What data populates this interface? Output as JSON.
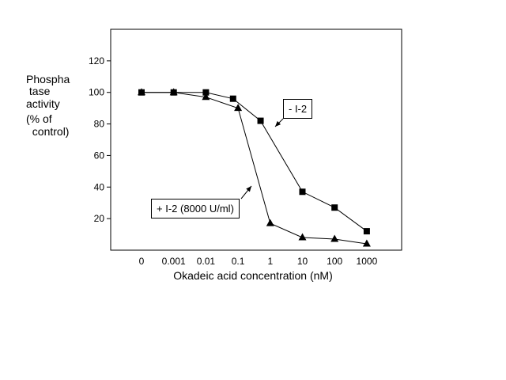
{
  "chart_data": {
    "type": "line",
    "title": "",
    "xlabel": "Okadeic acid concentration (nM)",
    "ylabel_lines": [
      "Phospha",
      " tase",
      "activity",
      "(% of",
      "  control)"
    ],
    "categories": [
      "0",
      "0.001",
      "0.01",
      "0.1",
      "1",
      "10",
      "100",
      "1000"
    ],
    "ylim": [
      0,
      140
    ],
    "yticks": [
      20,
      40,
      60,
      80,
      100,
      120
    ],
    "grid": false,
    "series": [
      {
        "name": "- I-2",
        "marker": "square",
        "x": [
          0,
          0.001,
          0.01,
          0.07,
          0.5,
          10,
          100,
          1000
        ],
        "values": [
          100,
          100,
          100,
          96,
          82,
          37,
          27,
          12
        ]
      },
      {
        "name": "+ I-2 (8000 U/ml)",
        "marker": "triangle",
        "x": [
          0,
          0.001,
          0.01,
          0.1,
          1,
          10,
          100,
          1000
        ],
        "values": [
          100,
          100,
          97,
          90,
          17,
          8,
          7,
          4
        ]
      }
    ]
  },
  "annotations": {
    "minus_label": "- I-2",
    "plus_label": "+ I-2 (8000 U/ml)"
  }
}
